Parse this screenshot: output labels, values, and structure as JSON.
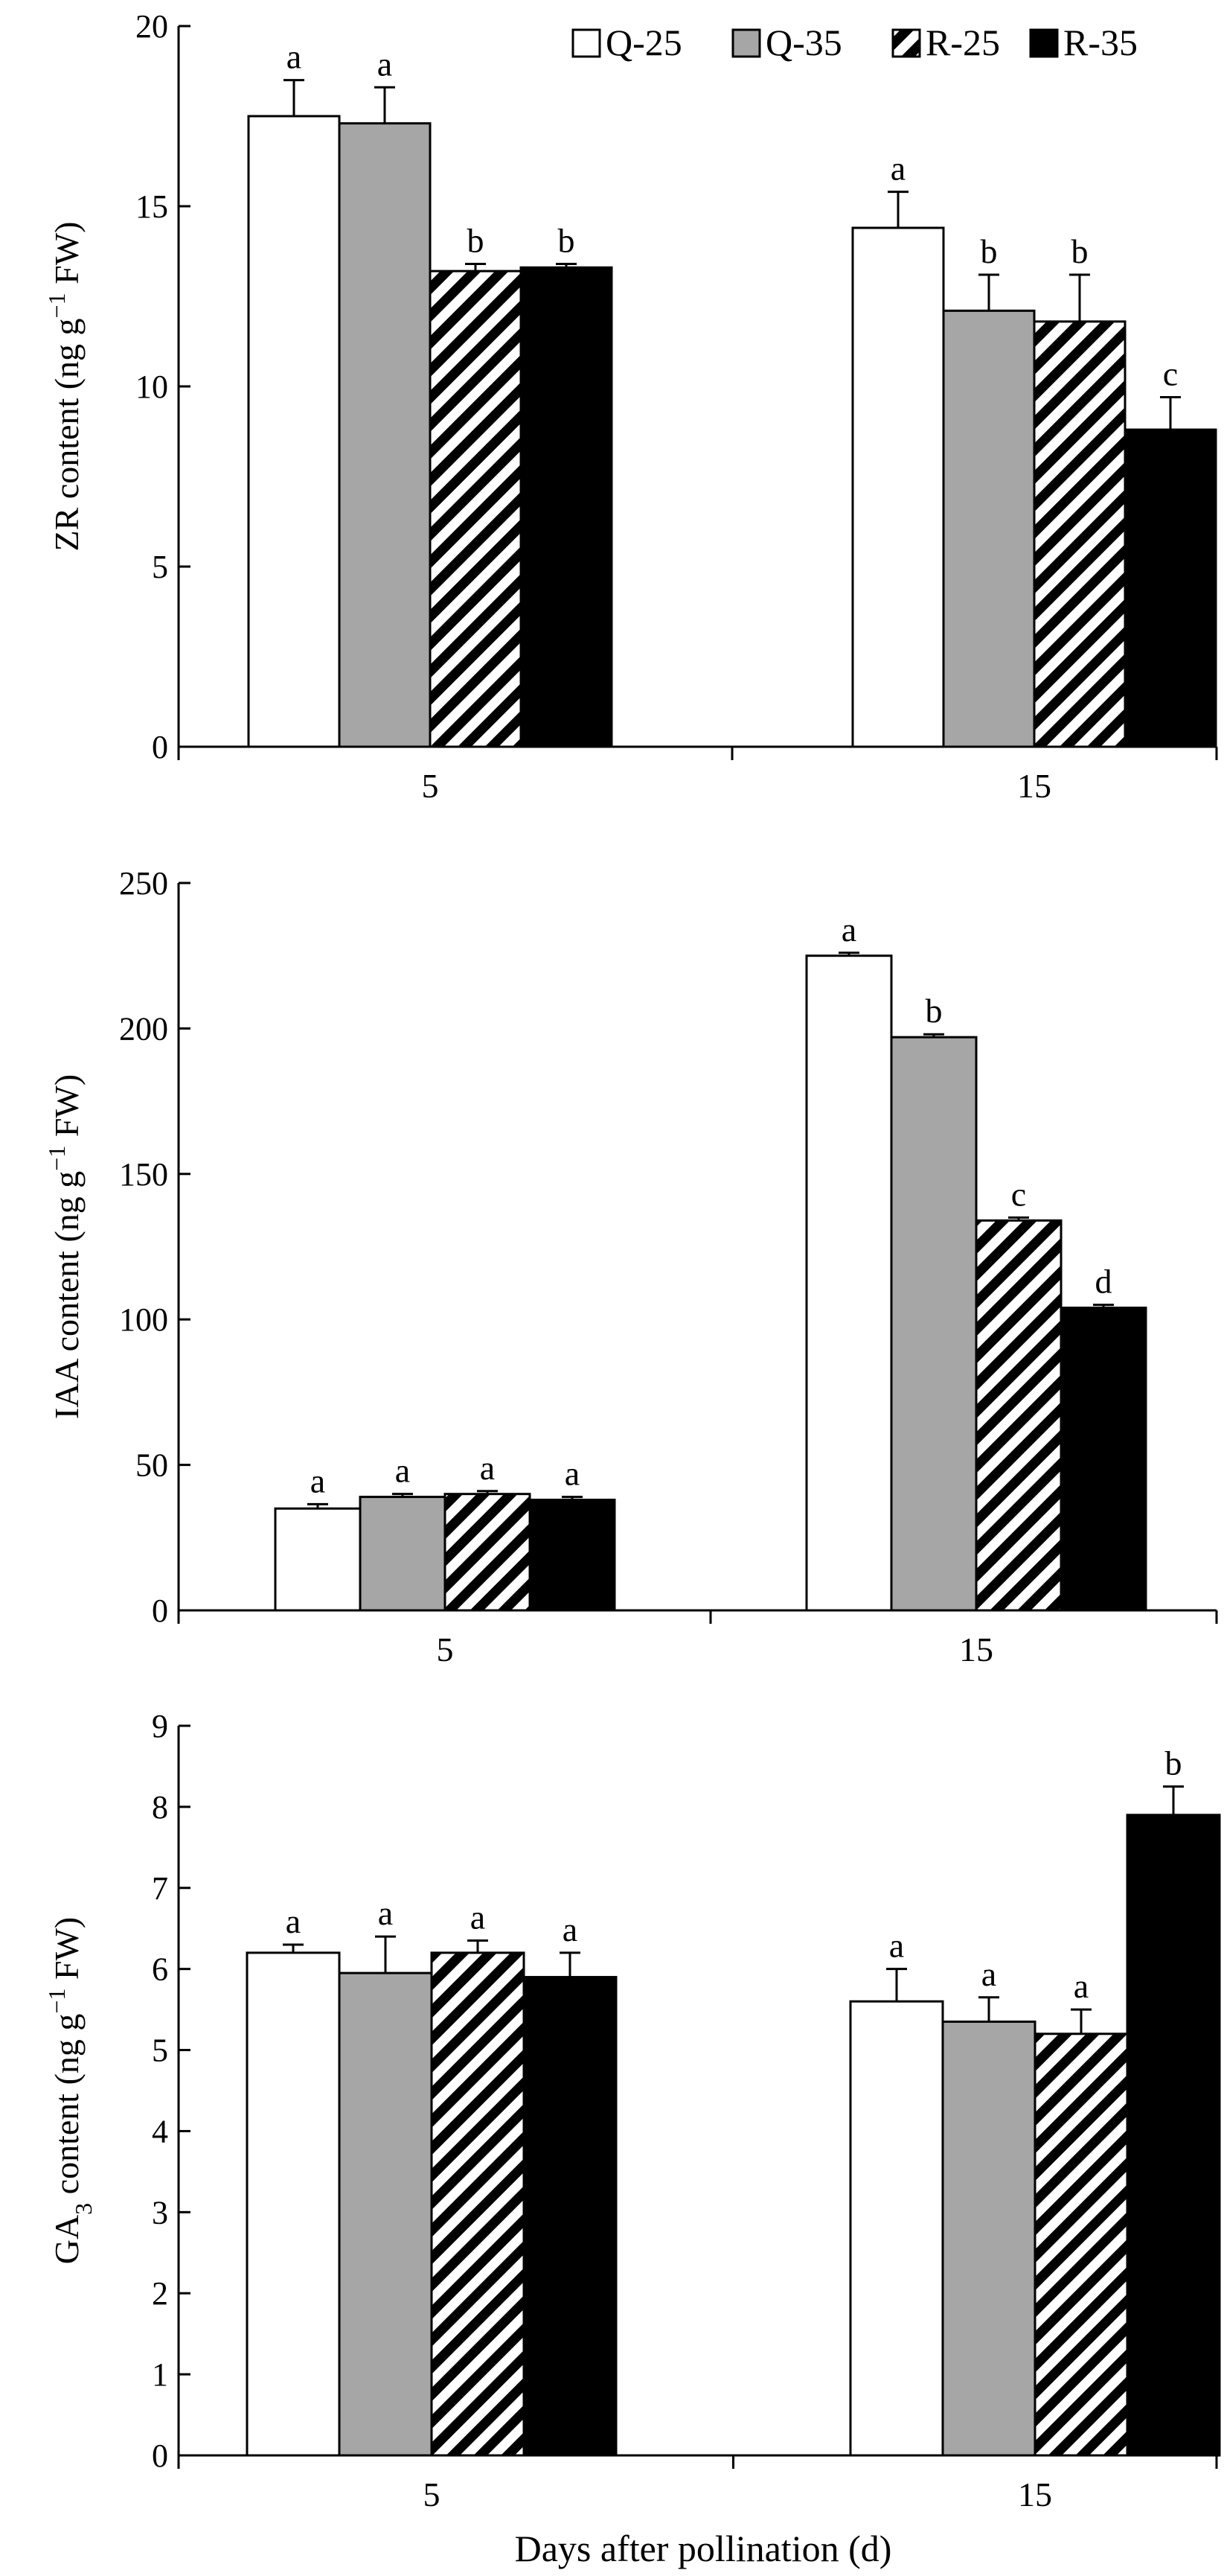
{
  "legend": {
    "series": [
      {
        "name": "Q-25",
        "fill": "#ffffff",
        "pattern": "none"
      },
      {
        "name": "Q-35",
        "fill": "#a6a6a6",
        "pattern": "none"
      },
      {
        "name": "R-25",
        "fill": "#ffffff",
        "pattern": "diagonal-stripes"
      },
      {
        "name": "R-35",
        "fill": "#000000",
        "pattern": "none"
      }
    ]
  },
  "xlabel": "Days after pollination (d)",
  "chart_data": [
    {
      "type": "bar",
      "categories": [
        "5",
        "15"
      ],
      "ylabel": {
        "prefix": "ZR content (ng g",
        "sup": "−1",
        "suffix": " FW)"
      },
      "ylim": [
        0,
        20
      ],
      "yticks": [
        0,
        5,
        10,
        15,
        20
      ],
      "series": [
        {
          "name": "Q-25",
          "values": [
            17.5,
            14.4
          ],
          "errors": [
            1.0,
            1.0
          ],
          "letters": [
            "a",
            "a"
          ]
        },
        {
          "name": "Q-35",
          "values": [
            17.3,
            12.1
          ],
          "errors": [
            1.0,
            1.0
          ],
          "letters": [
            "a",
            "b"
          ]
        },
        {
          "name": "R-25",
          "values": [
            13.2,
            11.8
          ],
          "errors": [
            0.2,
            1.3
          ],
          "letters": [
            "b",
            "b"
          ]
        },
        {
          "name": "R-35",
          "values": [
            13.3,
            8.8
          ],
          "errors": [
            0.1,
            0.9
          ],
          "letters": [
            "b",
            "c"
          ]
        }
      ]
    },
    {
      "type": "bar",
      "categories": [
        "5",
        "15"
      ],
      "ylabel": {
        "prefix": "IAA content (ng g",
        "sup": "−1",
        "suffix": " FW)"
      },
      "ylim": [
        0,
        250
      ],
      "yticks": [
        0,
        50,
        100,
        150,
        200,
        250
      ],
      "series": [
        {
          "name": "Q-25",
          "values": [
            35,
            225
          ],
          "errors": [
            1.5,
            1.0
          ],
          "letters": [
            "a",
            "a"
          ]
        },
        {
          "name": "Q-35",
          "values": [
            39,
            197
          ],
          "errors": [
            1.0,
            1.0
          ],
          "letters": [
            "a",
            "b"
          ]
        },
        {
          "name": "R-25",
          "values": [
            40,
            134
          ],
          "errors": [
            1.0,
            1.0
          ],
          "letters": [
            "a",
            "c"
          ]
        },
        {
          "name": "R-35",
          "values": [
            38,
            104
          ],
          "errors": [
            1.0,
            1.0
          ],
          "letters": [
            "a",
            "d"
          ]
        }
      ]
    },
    {
      "type": "bar",
      "categories": [
        "5",
        "15"
      ],
      "ylabel": {
        "prefix": "GA",
        "sub": "3",
        "mid": " content (ng g",
        "sup": "−1",
        "suffix": " FW)"
      },
      "ylim": [
        0,
        9
      ],
      "yticks": [
        0,
        1,
        2,
        3,
        4,
        5,
        6,
        7,
        8,
        9
      ],
      "series": [
        {
          "name": "Q-25",
          "values": [
            6.2,
            5.6
          ],
          "errors": [
            0.1,
            0.4
          ],
          "letters": [
            "a",
            "a"
          ]
        },
        {
          "name": "Q-35",
          "values": [
            5.95,
            5.35
          ],
          "errors": [
            0.45,
            0.3
          ],
          "letters": [
            "a",
            "a"
          ]
        },
        {
          "name": "R-25",
          "values": [
            6.2,
            5.2
          ],
          "errors": [
            0.15,
            0.3
          ],
          "letters": [
            "a",
            "a"
          ]
        },
        {
          "name": "R-35",
          "values": [
            5.9,
            7.9
          ],
          "errors": [
            0.3,
            0.35
          ],
          "letters": [
            "a",
            "b"
          ]
        }
      ]
    }
  ]
}
